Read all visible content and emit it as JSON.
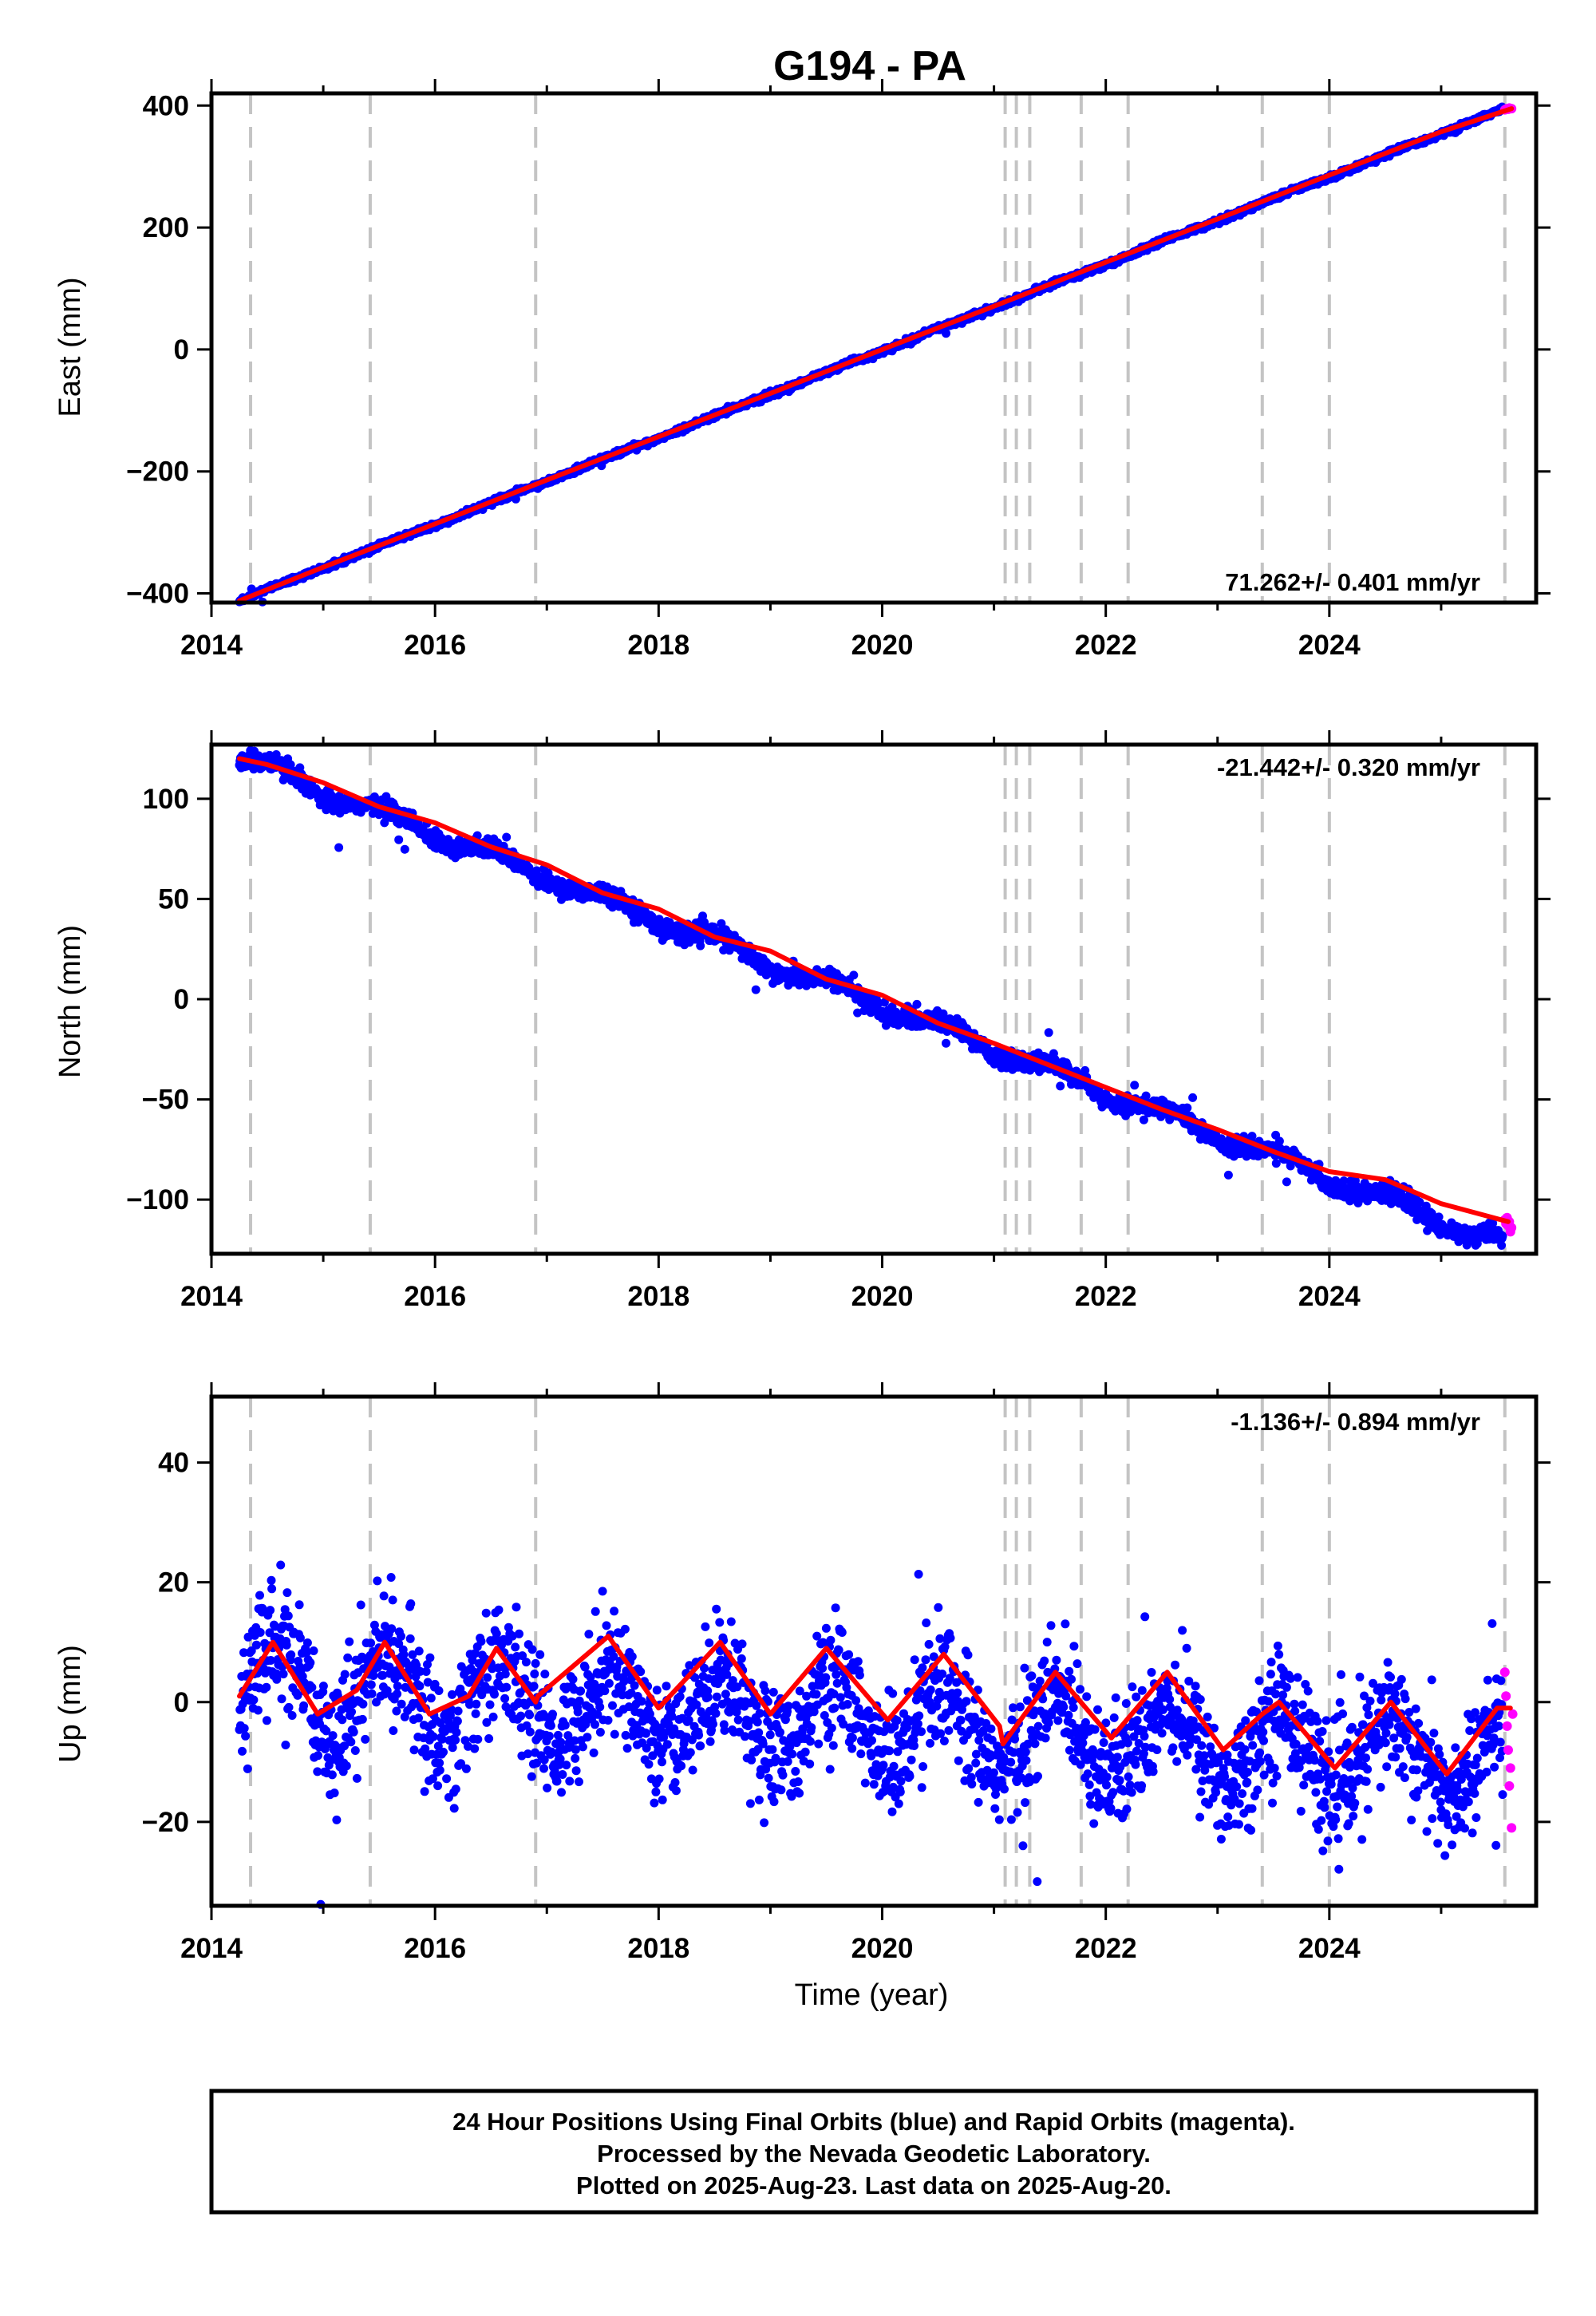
{
  "title": "G194 - PA",
  "chart_data": [
    {
      "type": "scatter",
      "panel": "east",
      "ylabel": "East (mm)",
      "xlabel": "",
      "xlim": [
        2014.0,
        2025.85
      ],
      "ylim": [
        -415,
        420
      ],
      "x_ticks": [
        2014,
        2016,
        2018,
        2020,
        2022,
        2024
      ],
      "y_ticks": [
        -400,
        -200,
        0,
        200,
        400
      ],
      "rate_label": "71.262+/- 0.401 mm/yr",
      "rate_position": "bottom-right",
      "grid": false,
      "series": [
        {
          "name": "Final Orbits",
          "color": "#0000ff",
          "marker": "dot",
          "model": {
            "start": 2014.25,
            "end": 2025.55,
            "y0": -412,
            "rate": 71.262,
            "seasonal_amp": 1.5,
            "noise": 2.2,
            "n": 2300
          }
        },
        {
          "name": "Rapid Orbits",
          "color": "#ff00ff",
          "marker": "dot",
          "x": [
            2025.57,
            2025.58,
            2025.59,
            2025.6,
            2025.61,
            2025.62,
            2025.63
          ],
          "y": [
            393,
            394,
            395,
            394,
            396,
            395,
            395
          ]
        },
        {
          "name": "Model Fit",
          "color": "#ff0000",
          "marker": "line",
          "x": [
            2014.25,
            2015.0,
            2016.0,
            2017.0,
            2018.0,
            2019.0,
            2020.0,
            2021.0,
            2022.0,
            2023.0,
            2024.0,
            2025.0,
            2025.63
          ],
          "y": [
            -412,
            -357,
            -286,
            -214,
            -143,
            -72,
            0,
            71,
            143,
            214,
            286,
            357,
            395
          ]
        }
      ]
    },
    {
      "type": "scatter",
      "panel": "north",
      "ylabel": "North (mm)",
      "xlabel": "",
      "xlim": [
        2014.0,
        2025.85
      ],
      "ylim": [
        -127,
        127
      ],
      "x_ticks": [
        2014,
        2016,
        2018,
        2020,
        2022,
        2024
      ],
      "y_ticks": [
        -100,
        -50,
        0,
        50,
        100
      ],
      "rate_label": "-21.442+/- 0.320 mm/yr",
      "rate_position": "top-right",
      "grid": false,
      "series": [
        {
          "name": "Final Orbits",
          "color": "#0000ff",
          "marker": "dot",
          "model": {
            "start": 2014.25,
            "end": 2025.55,
            "y0": 120,
            "rate": -21.442,
            "seasonal_amp": 3.5,
            "noise": 2.3,
            "n": 2300
          }
        },
        {
          "name": "Rapid Orbits",
          "color": "#ff00ff",
          "marker": "dot",
          "x": [
            2025.57,
            2025.58,
            2025.59,
            2025.6,
            2025.61,
            2025.62,
            2025.63
          ],
          "y": [
            -110,
            -112,
            -109,
            -113,
            -111,
            -116,
            -114
          ]
        },
        {
          "name": "Model Fit",
          "color": "#ff0000",
          "marker": "line",
          "x": [
            2014.25,
            2014.5,
            2015.0,
            2015.5,
            2016.0,
            2016.5,
            2017.0,
            2017.5,
            2018.0,
            2018.5,
            2019.0,
            2019.5,
            2020.0,
            2020.5,
            2021.0,
            2021.5,
            2022.0,
            2022.5,
            2023.0,
            2023.5,
            2024.0,
            2024.5,
            2025.0,
            2025.6
          ],
          "y": [
            120,
            117,
            108,
            96,
            88,
            76,
            67,
            53,
            45,
            31,
            24,
            10,
            2,
            -12,
            -22,
            -33,
            -44,
            -55,
            -65,
            -76,
            -86,
            -90,
            -102,
            -111
          ]
        }
      ]
    },
    {
      "type": "scatter",
      "panel": "up",
      "ylabel": "Up (mm)",
      "xlabel": "Time (year)",
      "xlim": [
        2014.0,
        2025.85
      ],
      "ylim": [
        -34,
        51
      ],
      "x_ticks": [
        2014,
        2016,
        2018,
        2020,
        2022,
        2024
      ],
      "y_ticks": [
        -20,
        0,
        20,
        40
      ],
      "rate_label": "-1.136+/- 0.894 mm/yr",
      "rate_position": "top-right",
      "grid": false,
      "series": [
        {
          "name": "Final Orbits",
          "color": "#0000ff",
          "marker": "dot",
          "model": {
            "start": 2014.25,
            "end": 2025.55,
            "y0": 3,
            "rate": -1.136,
            "seasonal_amp": 6.5,
            "noise": 5.0,
            "n": 2300
          }
        },
        {
          "name": "Rapid Orbits",
          "color": "#ff00ff",
          "marker": "dot",
          "x": [
            2025.57,
            2025.58,
            2025.59,
            2025.6,
            2025.61,
            2025.62,
            2025.63,
            2025.64
          ],
          "y": [
            5,
            1,
            -4,
            -8,
            -14,
            -11,
            -21,
            -2
          ]
        },
        {
          "name": "Model Fit",
          "color": "#ff0000",
          "marker": "line",
          "x": [
            2014.25,
            2014.55,
            2014.95,
            2015.3,
            2015.55,
            2015.95,
            2016.3,
            2016.55,
            2016.9,
            2016.92,
            2017.55,
            2018.0,
            2018.55,
            2019.0,
            2019.5,
            2020.05,
            2020.55,
            2021.05,
            2021.08,
            2021.55,
            2022.05,
            2022.55,
            2023.05,
            2023.4,
            2023.55,
            2024.05,
            2024.55,
            2025.05,
            2025.5,
            2025.62
          ],
          "y": [
            1,
            10,
            -2,
            2,
            10,
            -2,
            1,
            9,
            0,
            1,
            11,
            -1,
            10,
            -2,
            9,
            -3,
            8,
            -4,
            -7,
            5,
            -6,
            5,
            -8,
            -2,
            0,
            -11,
            0,
            -12,
            -1,
            -1
          ]
        }
      ]
    }
  ],
  "event_lines_x": [
    2014.35,
    2015.42,
    2016.9,
    2021.1,
    2021.2,
    2021.32,
    2021.78,
    2022.2,
    2023.4,
    2024.0,
    2025.57
  ],
  "footer": {
    "line1": "24 Hour Positions Using Final Orbits (blue) and Rapid Orbits (magenta).",
    "line2": "Processed by the Nevada Geodetic Laboratory.",
    "line3": "Plotted on 2025-Aug-23. Last data on 2025-Aug-20."
  }
}
